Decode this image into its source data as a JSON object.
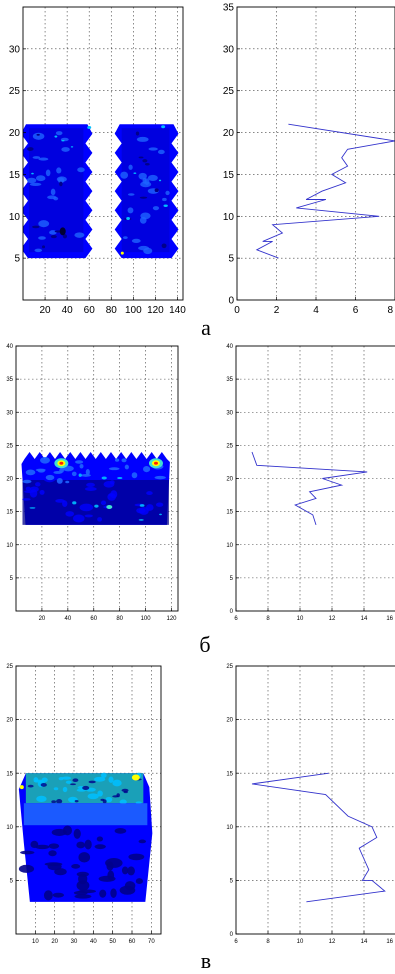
{
  "captions": [
    "а",
    "б",
    "в"
  ],
  "colors": {
    "line": "#3333cc",
    "contour_deep": "#00008b",
    "contour_base": "#0000ff",
    "contour_mid": "#1e64ff",
    "contour_light": "#00bfff",
    "contour_cyan": "#40e0d0",
    "contour_yellow": "#ffff00",
    "contour_red": "#ff2000",
    "grid": "#000000"
  },
  "chart_data": [
    {
      "id": "a-contour",
      "type": "heatmap",
      "xlim": [
        0,
        145
      ],
      "ylim": [
        0,
        35
      ],
      "xticks": [
        20,
        40,
        60,
        80,
        100,
        120,
        140
      ],
      "yticks": [
        5,
        10,
        15,
        20,
        25,
        30
      ],
      "grid": true,
      "regions": [
        {
          "x": [
            0,
            62
          ],
          "y": [
            5,
            21
          ]
        },
        {
          "x": [
            84,
            140
          ],
          "y": [
            5,
            21
          ]
        }
      ]
    },
    {
      "id": "a-profile",
      "type": "line",
      "xlim": [
        0,
        8
      ],
      "ylim": [
        0,
        35
      ],
      "xticks": [
        0,
        2,
        4,
        6,
        8
      ],
      "yticks": [
        0,
        5,
        10,
        15,
        20,
        25,
        30,
        35
      ],
      "grid": true,
      "series": [
        {
          "x": [
            2.6,
            8.0,
            5.6,
            5.3,
            5.6,
            4.8,
            5.5,
            4.3,
            3.5,
            4.5,
            3.0,
            7.2,
            1.8,
            2.3,
            1.3,
            1.8,
            1.0,
            2.1
          ],
          "y": [
            21,
            19,
            18,
            17,
            16,
            15,
            14,
            13,
            12,
            12,
            11,
            10,
            9,
            8,
            7,
            7,
            6,
            5
          ]
        }
      ]
    },
    {
      "id": "b-contour",
      "type": "heatmap",
      "xlim": [
        0,
        125
      ],
      "ylim": [
        0,
        40
      ],
      "xticks": [
        20,
        40,
        60,
        80,
        100,
        120
      ],
      "yticks": [
        5,
        10,
        15,
        20,
        25,
        30,
        35,
        40
      ],
      "grid": true,
      "regions": [
        {
          "x": [
            5,
            118
          ],
          "y": [
            13,
            24
          ]
        }
      ]
    },
    {
      "id": "b-profile",
      "type": "line",
      "xlim": [
        6,
        16
      ],
      "ylim": [
        0,
        40
      ],
      "xticks": [
        6,
        8,
        10,
        12,
        14,
        16
      ],
      "yticks": [
        0,
        5,
        10,
        15,
        20,
        25,
        30,
        35,
        40
      ],
      "grid": true,
      "series": [
        {
          "x": [
            7.0,
            7.3,
            14.2,
            11.4,
            12.6,
            10.6,
            11.0,
            9.7,
            10.8,
            11.0
          ],
          "y": [
            24,
            22,
            21,
            20,
            19,
            18,
            17,
            16,
            14.5,
            13
          ]
        }
      ]
    },
    {
      "id": "c-contour",
      "type": "heatmap",
      "xlim": [
        0,
        75
      ],
      "ylim": [
        0,
        25
      ],
      "xticks": [
        10,
        20,
        30,
        40,
        50,
        60,
        70
      ],
      "yticks": [
        5,
        10,
        15,
        20,
        25
      ],
      "grid": true,
      "regions": [
        {
          "x": [
            2,
            70
          ],
          "y": [
            3,
            15
          ]
        }
      ]
    },
    {
      "id": "c-profile",
      "type": "line",
      "xlim": [
        6,
        16
      ],
      "ylim": [
        0,
        25
      ],
      "xticks": [
        6,
        8,
        10,
        12,
        14,
        16
      ],
      "yticks": [
        0,
        5,
        10,
        15,
        20,
        25
      ],
      "grid": true,
      "series": [
        {
          "x": [
            11.8,
            7.0,
            11.6,
            13.0,
            14.5,
            14.8,
            13.7,
            14.0,
            14.3,
            13.9,
            14.5,
            15.3,
            10.4
          ],
          "y": [
            15,
            14,
            13,
            11,
            10,
            9,
            8,
            7,
            6,
            5,
            5,
            4,
            3
          ]
        }
      ]
    }
  ]
}
